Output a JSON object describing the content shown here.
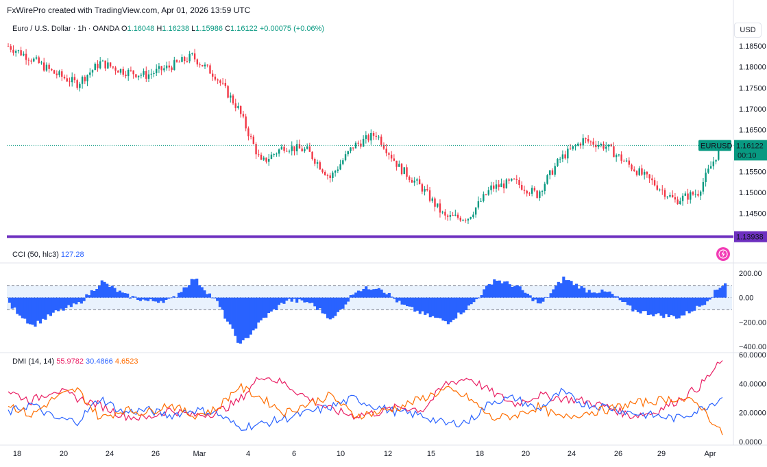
{
  "credit": "FxWirePro created with TradingView.com, Apr 01, 2026 13:59 UTC",
  "legend": {
    "symbol": "Euro / U.S. Dollar · 1h · OANDA",
    "o_label": "O",
    "o": "1.16048",
    "h_label": "H",
    "h": "1.16238",
    "l_label": "L",
    "l": "1.15986",
    "c_label": "C",
    "c": "1.16122",
    "change": "+0.00075 (+0.06%)"
  },
  "currency_button": "USD",
  "price_scale": {
    "labels": [
      "1.18500",
      "1.18000",
      "1.17500",
      "1.17000",
      "1.16500",
      "1.15500",
      "1.15000",
      "1.14500"
    ]
  },
  "symbol_tag": "EURUSD",
  "last_price": "1.16122",
  "countdown": "00:10",
  "support_level": "1.13938",
  "cci": {
    "name": "CCI (50, hlc3)",
    "value": "127.28",
    "scale": [
      "200.00",
      "0.00",
      "−200.00",
      "−400.00"
    ]
  },
  "dmi": {
    "name": "DMI (14, 14)",
    "adx": "55.9782",
    "plus_di": "30.4866",
    "minus_di": "4.6523",
    "scale": [
      "60.0000",
      "40.0000",
      "20.0000",
      "0.0000"
    ]
  },
  "time_axis": [
    "18",
    "20",
    "24",
    "26",
    "Mar",
    "4",
    "6",
    "10",
    "12",
    "15",
    "18",
    "20",
    "24",
    "26",
    "29",
    "Apr"
  ],
  "colors": {
    "up": "#089981",
    "down": "#f23645",
    "cci": "#2962ff",
    "support": "#6d2fbf",
    "adx": "#e91e63",
    "plus_di": "#2962ff",
    "minus_di": "#ff6d00"
  },
  "chart_data": [
    {
      "type": "candlestick",
      "title": "Euro / U.S. Dollar · 1h · OANDA",
      "ylim": [
        1.139,
        1.187
      ],
      "x": [
        "Feb 17",
        "Feb 18",
        "Feb 19",
        "Feb 20",
        "Feb 23",
        "Feb 24",
        "Feb 25",
        "Feb 26",
        "Feb 27",
        "Mar 2",
        "Mar 3",
        "Mar 4",
        "Mar 5",
        "Mar 6",
        "Mar 9",
        "Mar 10",
        "Mar 11",
        "Mar 12",
        "Mar 13",
        "Mar 16",
        "Mar 17",
        "Mar 18",
        "Mar 19",
        "Mar 20",
        "Mar 23",
        "Mar 24",
        "Mar 25",
        "Mar 26",
        "Mar 27",
        "Mar 30",
        "Mar 31",
        "Apr 1"
      ],
      "close": [
        1.185,
        1.182,
        1.1785,
        1.176,
        1.181,
        1.179,
        1.178,
        1.18,
        1.1825,
        1.178,
        1.17,
        1.157,
        1.161,
        1.16,
        1.1535,
        1.161,
        1.164,
        1.156,
        1.151,
        1.144,
        1.144,
        1.151,
        1.1525,
        1.1495,
        1.158,
        1.1625,
        1.161,
        1.1565,
        1.1525,
        1.148,
        1.15,
        1.1612
      ],
      "current_price": 1.16122,
      "support_line": 1.13938
    },
    {
      "type": "area",
      "title": "CCI (50, hlc3)",
      "ylim": [
        -450,
        250
      ],
      "bands": [
        -100,
        100
      ],
      "x": [
        "Feb 17",
        "Feb 18",
        "Feb 19",
        "Feb 20",
        "Feb 23",
        "Feb 24",
        "Feb 25",
        "Feb 26",
        "Feb 27",
        "Mar 2",
        "Mar 3",
        "Mar 4",
        "Mar 5",
        "Mar 6",
        "Mar 9",
        "Mar 10",
        "Mar 11",
        "Mar 12",
        "Mar 13",
        "Mar 16",
        "Mar 17",
        "Mar 18",
        "Mar 19",
        "Mar 20",
        "Mar 23",
        "Mar 24",
        "Mar 25",
        "Mar 26",
        "Mar 27",
        "Mar 30",
        "Mar 31",
        "Apr 1"
      ],
      "values": [
        -60,
        -230,
        -120,
        -50,
        130,
        20,
        -30,
        -20,
        160,
        -40,
        -390,
        -170,
        -20,
        -40,
        -180,
        60,
        90,
        -60,
        -140,
        -200,
        -60,
        150,
        90,
        -60,
        160,
        60,
        40,
        -100,
        -140,
        -160,
        -60,
        127.28
      ]
    },
    {
      "type": "line",
      "title": "DMI (14, 14)",
      "ylim": [
        0,
        60
      ],
      "x": [
        "Feb 17",
        "Feb 18",
        "Feb 19",
        "Feb 20",
        "Feb 23",
        "Feb 24",
        "Feb 25",
        "Feb 26",
        "Feb 27",
        "Mar 2",
        "Mar 3",
        "Mar 4",
        "Mar 5",
        "Mar 6",
        "Mar 9",
        "Mar 10",
        "Mar 11",
        "Mar 12",
        "Mar 13",
        "Mar 16",
        "Mar 17",
        "Mar 18",
        "Mar 19",
        "Mar 20",
        "Mar 23",
        "Mar 24",
        "Mar 25",
        "Mar 26",
        "Mar 27",
        "Mar 30",
        "Mar 31",
        "Apr 1"
      ],
      "series": [
        {
          "name": "ADX",
          "values": [
            35,
            28,
            36,
            30,
            25,
            18,
            16,
            22,
            18,
            20,
            28,
            46,
            40,
            30,
            22,
            18,
            20,
            24,
            22,
            40,
            44,
            34,
            26,
            32,
            30,
            28,
            24,
            18,
            20,
            28,
            38,
            55.98
          ]
        },
        {
          "name": "+DI",
          "values": [
            20,
            26,
            16,
            14,
            30,
            20,
            22,
            18,
            22,
            20,
            10,
            12,
            16,
            20,
            24,
            30,
            24,
            20,
            18,
            12,
            14,
            28,
            30,
            22,
            34,
            26,
            24,
            20,
            18,
            16,
            22,
            30.49
          ]
        },
        {
          "name": "−DI",
          "values": [
            26,
            18,
            30,
            36,
            16,
            22,
            20,
            26,
            18,
            22,
            38,
            30,
            20,
            26,
            32,
            18,
            20,
            24,
            30,
            36,
            30,
            16,
            18,
            24,
            16,
            20,
            22,
            26,
            28,
            30,
            26,
            4.65
          ]
        }
      ]
    }
  ]
}
